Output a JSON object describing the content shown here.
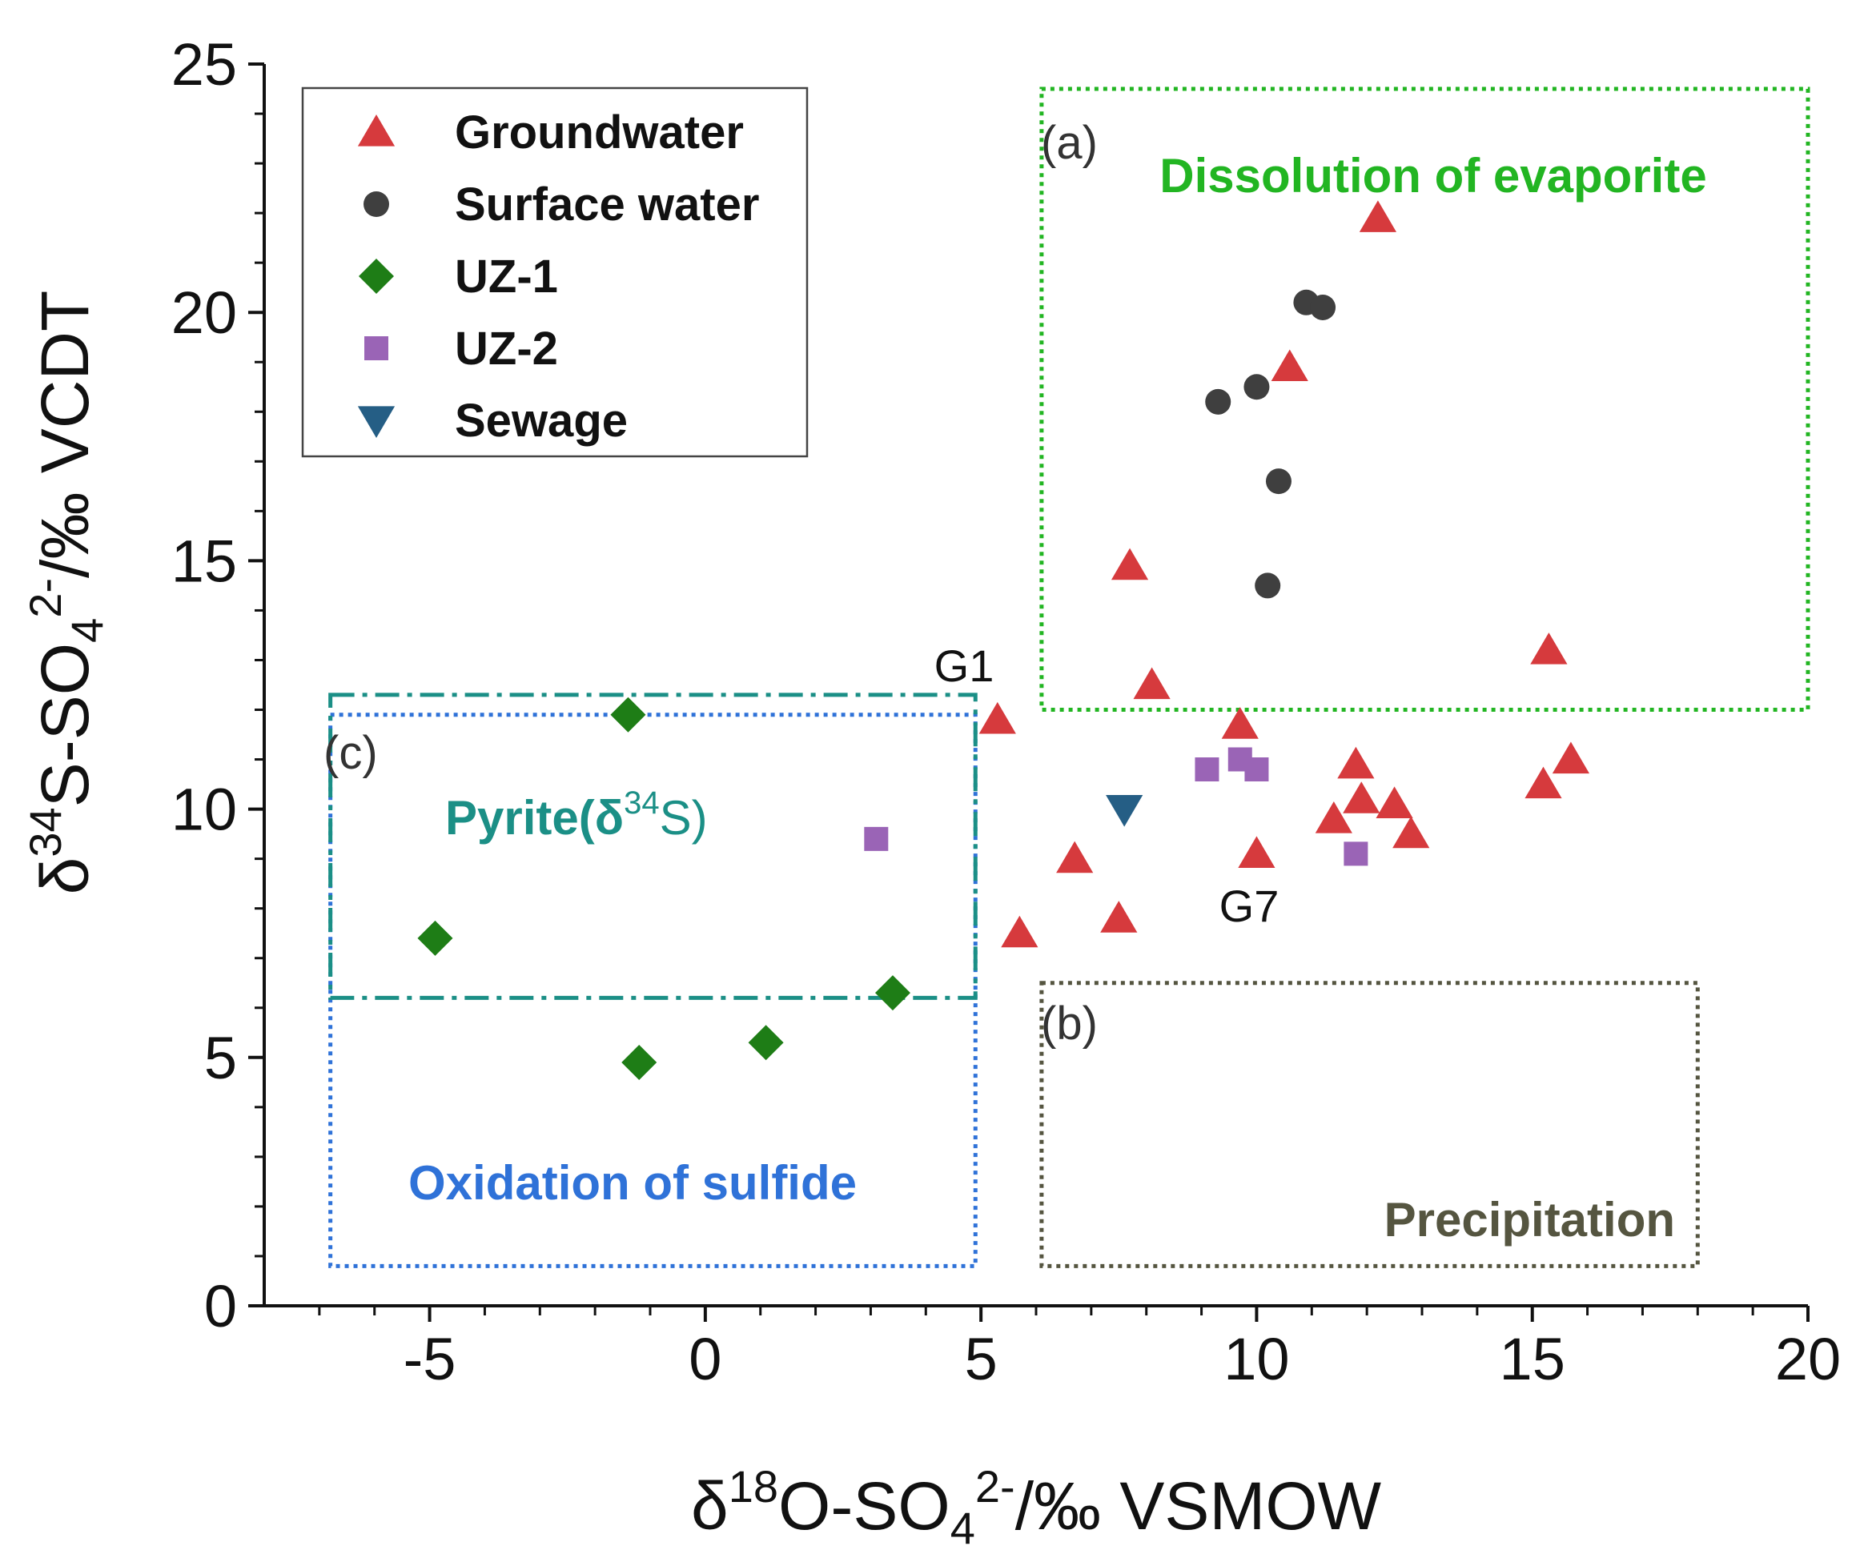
{
  "chart_data": {
    "type": "scatter",
    "xlabel": {
      "pre": "δ",
      "sup1": "18",
      "mid": "O-SO",
      "sub": "4",
      "sup2": "2-",
      "post": "/‰ VSMOW"
    },
    "ylabel": {
      "pre": "δ",
      "sup1": "34",
      "mid": "S-SO",
      "sub": "4",
      "sup2": "2-",
      "post": "/‰ VCDT"
    },
    "xlim": [
      -8,
      20
    ],
    "ylim": [
      0,
      25
    ],
    "x_ticks": [
      -5,
      0,
      5,
      10,
      15,
      20
    ],
    "y_ticks": [
      0,
      5,
      10,
      15,
      20,
      25
    ],
    "grid": false,
    "legend_position": "top-left",
    "series": [
      {
        "name": "Groundwater",
        "marker": "triangle-up",
        "color": "#d63a3d",
        "points": [
          {
            "x": 12.2,
            "y": 21.9
          },
          {
            "x": 10.6,
            "y": 18.9
          },
          {
            "x": 7.7,
            "y": 14.9
          },
          {
            "x": 8.1,
            "y": 12.5
          },
          {
            "x": 5.3,
            "y": 11.8
          },
          {
            "x": 9.7,
            "y": 11.7
          },
          {
            "x": 11.8,
            "y": 10.9
          },
          {
            "x": 11.9,
            "y": 10.2
          },
          {
            "x": 12.5,
            "y": 10.1
          },
          {
            "x": 11.4,
            "y": 9.8
          },
          {
            "x": 12.8,
            "y": 9.5
          },
          {
            "x": 10.0,
            "y": 9.1
          },
          {
            "x": 6.7,
            "y": 9.0
          },
          {
            "x": 7.5,
            "y": 7.8
          },
          {
            "x": 5.7,
            "y": 7.5
          },
          {
            "x": 15.3,
            "y": 13.2
          },
          {
            "x": 15.7,
            "y": 11.0
          },
          {
            "x": 15.2,
            "y": 10.5
          }
        ]
      },
      {
        "name": "Surface water",
        "marker": "circle",
        "color": "#3f3f3f",
        "points": [
          {
            "x": 10.9,
            "y": 20.2
          },
          {
            "x": 11.2,
            "y": 20.1
          },
          {
            "x": 10.0,
            "y": 18.5
          },
          {
            "x": 9.3,
            "y": 18.2
          },
          {
            "x": 10.4,
            "y": 16.6
          },
          {
            "x": 10.2,
            "y": 14.5
          }
        ]
      },
      {
        "name": "UZ-1",
        "marker": "diamond",
        "color": "#1e7d16",
        "points": [
          {
            "x": -1.4,
            "y": 11.9
          },
          {
            "x": -4.9,
            "y": 7.4
          },
          {
            "x": 3.4,
            "y": 6.3
          },
          {
            "x": 1.1,
            "y": 5.3
          },
          {
            "x": -1.2,
            "y": 4.9
          }
        ]
      },
      {
        "name": "UZ-2",
        "marker": "square",
        "color": "#9a64b6",
        "points": [
          {
            "x": 3.1,
            "y": 9.4
          },
          {
            "x": 9.1,
            "y": 10.8
          },
          {
            "x": 9.7,
            "y": 11.0
          },
          {
            "x": 10.0,
            "y": 10.8
          },
          {
            "x": 11.8,
            "y": 9.1
          }
        ]
      },
      {
        "name": "Sewage",
        "marker": "triangle-down",
        "color": "#255e85",
        "points": [
          {
            "x": 7.6,
            "y": 10.0
          }
        ]
      }
    ],
    "regions": [
      {
        "id": "a",
        "tag": "(a)",
        "label": "Dissolution of evaporite",
        "x": [
          6.1,
          20.0
        ],
        "y": [
          12.0,
          24.5
        ],
        "color": "#22b522",
        "style": "dotted",
        "label_color": "#22b522"
      },
      {
        "id": "b",
        "tag": "(b)",
        "label": "Precipitation",
        "x": [
          6.1,
          18.0
        ],
        "y": [
          0.8,
          6.5
        ],
        "color": "#555540",
        "style": "dotted",
        "label_color": "#555540"
      },
      {
        "id": "c",
        "tag": "(c)",
        "label": "Oxidation of sulfide",
        "x": [
          -6.8,
          4.9
        ],
        "y": [
          0.8,
          11.9
        ],
        "color": "#2f72d8",
        "style": "dotted",
        "label_color": "#2f72d8"
      },
      {
        "id": "pyrite",
        "tag": "",
        "label": "Pyrite(δ34S)",
        "label_pre": "Pyrite(δ",
        "label_sup": "34",
        "label_post": "S)",
        "x": [
          -6.8,
          4.9
        ],
        "y": [
          6.2,
          12.3
        ],
        "color": "#1b8f86",
        "style": "dashdot",
        "label_color": "#1b8f86"
      }
    ],
    "annotations": [
      {
        "text": "G1",
        "x": 5.0,
        "y": 12.7
      },
      {
        "text": "G7",
        "x": 10.2,
        "y": 7.6
      }
    ]
  }
}
